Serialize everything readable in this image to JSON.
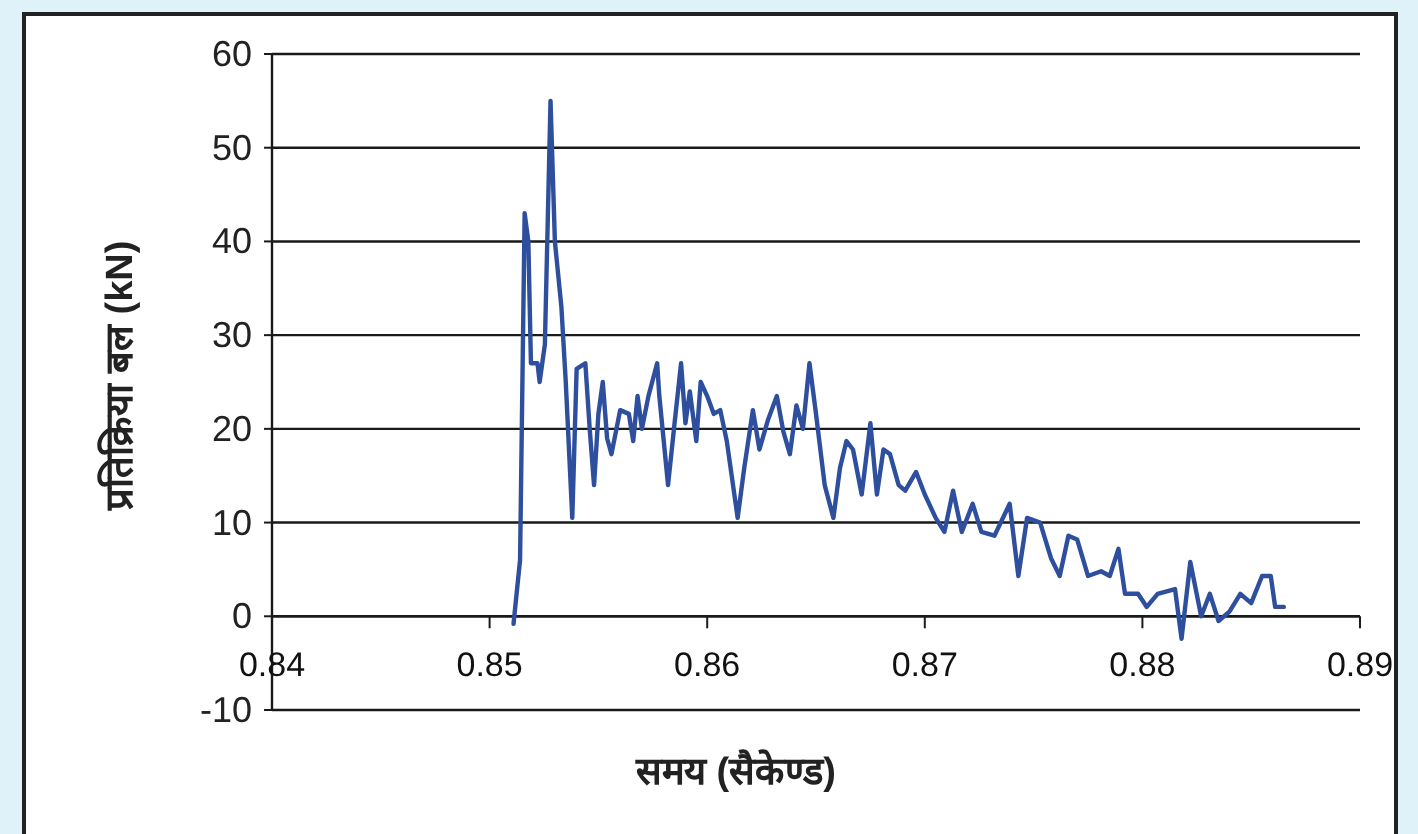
{
  "chart_data": {
    "type": "line",
    "xlabel": "समय (सैकेण्ड)",
    "ylabel": "प्रतिक्रिया बल (kN)",
    "xlim": [
      0.84,
      0.89
    ],
    "xticks": [
      0.84,
      0.85,
      0.86,
      0.87,
      0.88,
      0.89
    ],
    "ylim": [
      -10,
      60
    ],
    "yticks": [
      -10,
      0,
      10,
      20,
      30,
      40,
      50,
      60
    ],
    "grid": "y",
    "marker": "none",
    "line_style": "solid",
    "series": [
      {
        "color": "#2e4f9e",
        "x": [
          0.8511,
          0.8514,
          0.85161,
          0.85178,
          0.8519,
          0.8522,
          0.8523,
          0.85254,
          0.8528,
          0.853,
          0.8533,
          0.8535,
          0.8538,
          0.854,
          0.8544,
          0.8546,
          0.8548,
          0.855,
          0.8552,
          0.8554,
          0.8556,
          0.856,
          0.8564,
          0.8566,
          0.8568,
          0.857,
          0.8573,
          0.8577,
          0.8578,
          0.8582,
          0.8585,
          0.8588,
          0.859,
          0.8592,
          0.8595,
          0.8597,
          0.86,
          0.8603,
          0.8606,
          0.8609,
          0.8614,
          0.8617,
          0.8621,
          0.8624,
          0.8628,
          0.8632,
          0.8635,
          0.8638,
          0.8641,
          0.8644,
          0.8647,
          0.865,
          0.8654,
          0.8658,
          0.8661,
          0.8664,
          0.8667,
          0.8671,
          0.8675,
          0.8678,
          0.8681,
          0.8684,
          0.8688,
          0.8691,
          0.8696,
          0.87,
          0.8705,
          0.8709,
          0.8713,
          0.8717,
          0.8722,
          0.8726,
          0.8732,
          0.8739,
          0.8743,
          0.8747,
          0.8753,
          0.8758,
          0.8762,
          0.8766,
          0.877,
          0.8775,
          0.8781,
          0.8785,
          0.8789,
          0.8792,
          0.8798,
          0.8802,
          0.8807,
          0.8815,
          0.8818,
          0.8822,
          0.8827,
          0.8831,
          0.8835,
          0.884,
          0.8845,
          0.885,
          0.8855,
          0.8859,
          0.8861,
          0.8865
        ],
        "values": [
          -0.8,
          6,
          43,
          40,
          27,
          27,
          25,
          29,
          55,
          40,
          33,
          25,
          10.5,
          26.4,
          27,
          20,
          14,
          21.6,
          25,
          19,
          17.3,
          22,
          21.6,
          18.7,
          23.5,
          20,
          23.5,
          27,
          23.5,
          14,
          20.6,
          27,
          20.6,
          24,
          18.7,
          25,
          23.5,
          21.6,
          22,
          18.7,
          10.5,
          15.8,
          22,
          17.8,
          21,
          23.5,
          19.7,
          17.3,
          22.5,
          20,
          27,
          21.6,
          14,
          10.5,
          15.8,
          18.7,
          17.8,
          13,
          20.6,
          13,
          17.8,
          17.3,
          14,
          13.4,
          15.4,
          13,
          10.5,
          9,
          13.4,
          9,
          12,
          9,
          8.6,
          12,
          4.3,
          10.5,
          10,
          6.2,
          4.3,
          8.6,
          8.2,
          4.3,
          4.8,
          4.3,
          7.2,
          2.4,
          2.4,
          1,
          2.4,
          2.9,
          -2.4,
          5.8,
          0,
          2.4,
          -0.5,
          0.5,
          2.4,
          1.4,
          4.3,
          4.3,
          1,
          1
        ]
      }
    ]
  }
}
